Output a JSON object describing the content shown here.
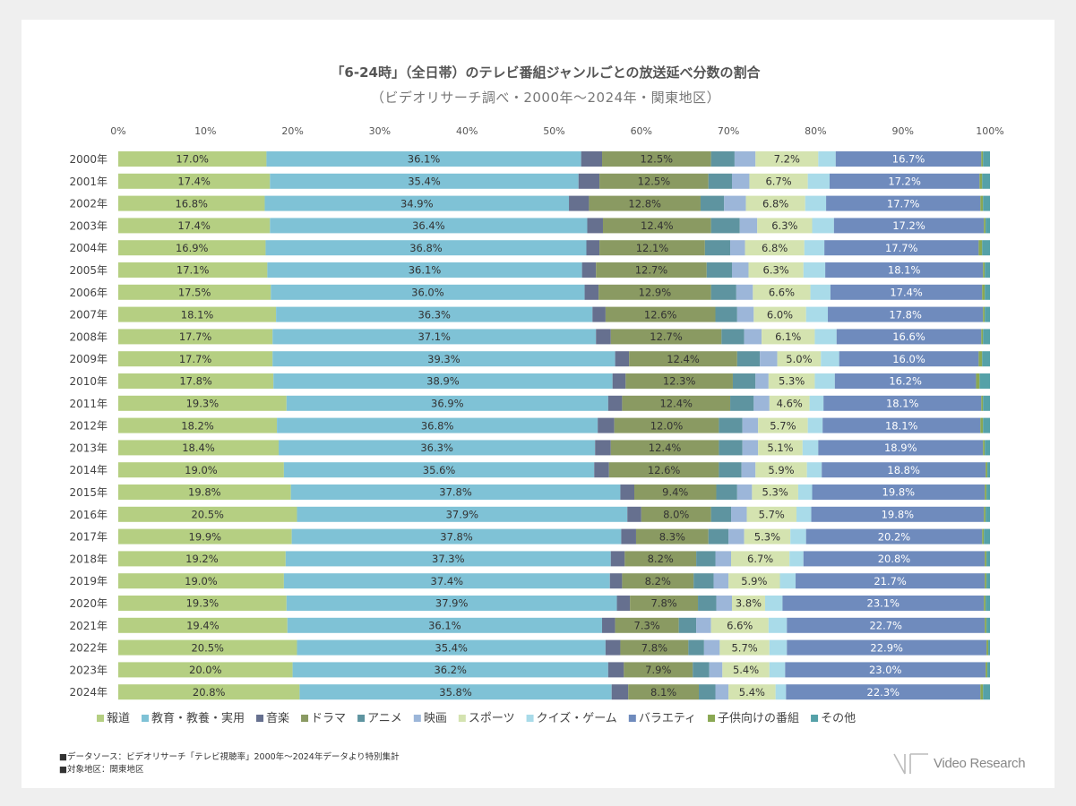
{
  "colors": {
    "報道": "#b5cf82",
    "教育・教養・実用": "#7fc2d6",
    "音楽": "#66708f",
    "ドラマ": "#8a9a62",
    "アニメ": "#5e94a0",
    "映画": "#9cb6d9",
    "スポーツ": "#d4e3b0",
    "クイズ・ゲーム": "#a9dbe9",
    "バラエティ": "#6f8bbd",
    "子供向けの番組": "#8aa853",
    "その他": "#55a1a8"
  },
  "chart_data": {
    "type": "bar",
    "orientation": "horizontal",
    "stacked": true,
    "title": "「6-24時」（全日帯）のテレビ番組ジャンルごとの放送延べ分数の割合",
    "subtitle": "（ビデオリサーチ調べ・2000年〜2024年・関東地区）",
    "xlim": [
      0,
      100
    ],
    "xticks": [
      "0%",
      "10%",
      "20%",
      "30%",
      "40%",
      "50%",
      "60%",
      "70%",
      "80%",
      "90%",
      "100%"
    ],
    "legend_position": "bottom",
    "categories": [
      "2000年",
      "2001年",
      "2002年",
      "2003年",
      "2004年",
      "2005年",
      "2006年",
      "2007年",
      "2008年",
      "2009年",
      "2010年",
      "2011年",
      "2012年",
      "2013年",
      "2014年",
      "2015年",
      "2016年",
      "2017年",
      "2018年",
      "2019年",
      "2020年",
      "2021年",
      "2022年",
      "2023年",
      "2024年"
    ],
    "series": [
      {
        "name": "報道",
        "values": [
          17.0,
          17.4,
          16.8,
          17.4,
          16.9,
          17.1,
          17.5,
          18.1,
          17.7,
          17.7,
          17.8,
          19.3,
          18.2,
          18.4,
          19.0,
          19.8,
          20.5,
          19.9,
          19.2,
          19.0,
          19.3,
          19.4,
          20.5,
          20.0,
          20.8
        ],
        "labeled": true
      },
      {
        "name": "教育・教養・実用",
        "values": [
          36.1,
          35.4,
          34.9,
          36.4,
          36.8,
          36.1,
          36.0,
          36.3,
          37.1,
          39.3,
          38.9,
          36.9,
          36.8,
          36.3,
          35.6,
          37.8,
          37.9,
          37.8,
          37.3,
          37.4,
          37.9,
          36.1,
          35.4,
          36.2,
          35.8
        ],
        "labeled": true
      },
      {
        "name": "音楽",
        "values": [
          2.4,
          2.4,
          2.3,
          1.8,
          1.5,
          1.6,
          1.6,
          1.5,
          1.7,
          1.6,
          1.5,
          1.6,
          1.9,
          1.8,
          1.7,
          1.6,
          1.6,
          1.7,
          1.6,
          1.4,
          1.5,
          1.5,
          1.7,
          1.8,
          1.9
        ],
        "labeled": false
      },
      {
        "name": "ドラマ",
        "values": [
          12.5,
          12.5,
          12.8,
          12.4,
          12.1,
          12.7,
          12.9,
          12.6,
          12.7,
          12.4,
          12.3,
          12.4,
          12.0,
          12.4,
          12.6,
          9.4,
          8.0,
          8.3,
          8.2,
          8.2,
          7.8,
          7.3,
          7.8,
          7.9,
          8.1
        ],
        "labeled": true
      },
      {
        "name": "アニメ",
        "values": [
          2.7,
          2.7,
          2.7,
          3.3,
          2.9,
          2.9,
          2.9,
          2.5,
          2.6,
          2.6,
          2.6,
          2.7,
          2.7,
          2.7,
          2.6,
          2.4,
          2.3,
          2.3,
          2.2,
          2.3,
          2.1,
          2.0,
          1.8,
          1.9,
          1.9
        ],
        "labeled": false
      },
      {
        "name": "映画",
        "values": [
          2.4,
          2.0,
          2.5,
          2.0,
          1.7,
          1.9,
          1.9,
          1.9,
          2.0,
          2.0,
          1.5,
          1.8,
          1.8,
          1.8,
          1.6,
          1.7,
          1.8,
          1.8,
          1.8,
          1.7,
          1.8,
          1.7,
          1.8,
          1.5,
          1.5
        ],
        "labeled": false
      },
      {
        "name": "スポーツ",
        "values": [
          7.2,
          6.7,
          6.8,
          6.3,
          6.8,
          6.3,
          6.6,
          6.0,
          6.1,
          5.0,
          5.3,
          4.6,
          5.7,
          5.1,
          5.9,
          5.3,
          5.7,
          5.3,
          6.7,
          5.9,
          3.8,
          6.6,
          5.7,
          5.4,
          5.4
        ],
        "labeled": true
      },
      {
        "name": "クイズ・ゲーム",
        "values": [
          2.0,
          2.5,
          2.4,
          2.5,
          2.3,
          2.5,
          2.3,
          2.5,
          2.5,
          2.1,
          2.3,
          1.6,
          1.7,
          1.8,
          1.7,
          1.6,
          1.7,
          1.8,
          1.6,
          1.8,
          2.0,
          2.1,
          2.0,
          1.8,
          1.2
        ],
        "labeled": false
      },
      {
        "name": "バラエティ",
        "values": [
          16.7,
          17.2,
          17.7,
          17.2,
          17.7,
          18.1,
          17.4,
          17.8,
          16.6,
          16.0,
          16.2,
          18.1,
          18.1,
          18.9,
          18.8,
          19.8,
          19.8,
          20.2,
          20.8,
          21.7,
          23.1,
          22.7,
          22.9,
          23.0,
          22.3
        ],
        "labeled": true
      },
      {
        "name": "子供向けの番組",
        "values": [
          0.2,
          0.3,
          0.3,
          0.2,
          0.4,
          0.2,
          0.3,
          0.2,
          0.2,
          0.4,
          0.4,
          0.2,
          0.3,
          0.2,
          0.2,
          0.2,
          0.2,
          0.2,
          0.2,
          0.2,
          0.2,
          0.2,
          0.2,
          0.2,
          0.3
        ],
        "labeled": false
      },
      {
        "name": "その他",
        "values": [
          0.8,
          0.9,
          0.8,
          0.5,
          0.9,
          0.6,
          0.6,
          0.6,
          0.8,
          0.9,
          1.2,
          0.8,
          0.8,
          0.6,
          0.3,
          0.4,
          0.5,
          0.7,
          0.4,
          0.4,
          0.5,
          0.4,
          0.2,
          0.3,
          0.8
        ],
        "labeled": false
      }
    ]
  },
  "footnotes": {
    "source": "■データソース：ビデオリサーチ「テレビ視聴率」2000年〜2024年データより特別集計",
    "area": "■対象地区：関東地区"
  },
  "logo": {
    "text": "Video Research"
  }
}
